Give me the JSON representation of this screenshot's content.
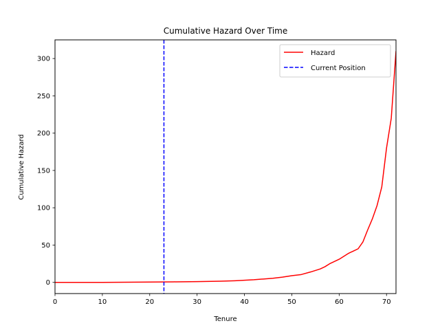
{
  "chart_data": {
    "type": "line",
    "title": "Cumulative Hazard Over Time",
    "xlabel": "Tenure",
    "ylabel": "Cumulative Hazard",
    "xlim": [
      0,
      72
    ],
    "ylim": [
      -15,
      325
    ],
    "xticks": [
      0,
      10,
      20,
      30,
      40,
      50,
      60,
      70
    ],
    "yticks": [
      0,
      50,
      100,
      150,
      200,
      250,
      300
    ],
    "grid": false,
    "legend_position": "top-right",
    "series": [
      {
        "name": "Hazard",
        "color": "#ff0000",
        "style": "solid",
        "x": [
          0,
          5,
          10,
          15,
          20,
          25,
          30,
          35,
          38,
          40,
          42,
          44,
          46,
          48,
          50,
          52,
          54,
          56,
          57,
          58,
          60,
          61,
          62,
          63,
          64,
          65,
          66,
          67,
          68,
          69,
          70,
          71,
          72
        ],
        "y": [
          0,
          0,
          0,
          0.2,
          0.4,
          0.7,
          1.0,
          1.6,
          2.2,
          2.8,
          3.5,
          4.5,
          5.5,
          7,
          9,
          10.5,
          14,
          18,
          21,
          25,
          31,
          35,
          39,
          42,
          45,
          54,
          70,
          85,
          103,
          128,
          180,
          220,
          310
        ]
      },
      {
        "name": "Current Position",
        "color": "#0000ff",
        "style": "dashed",
        "type": "vline",
        "x": 23
      }
    ]
  }
}
